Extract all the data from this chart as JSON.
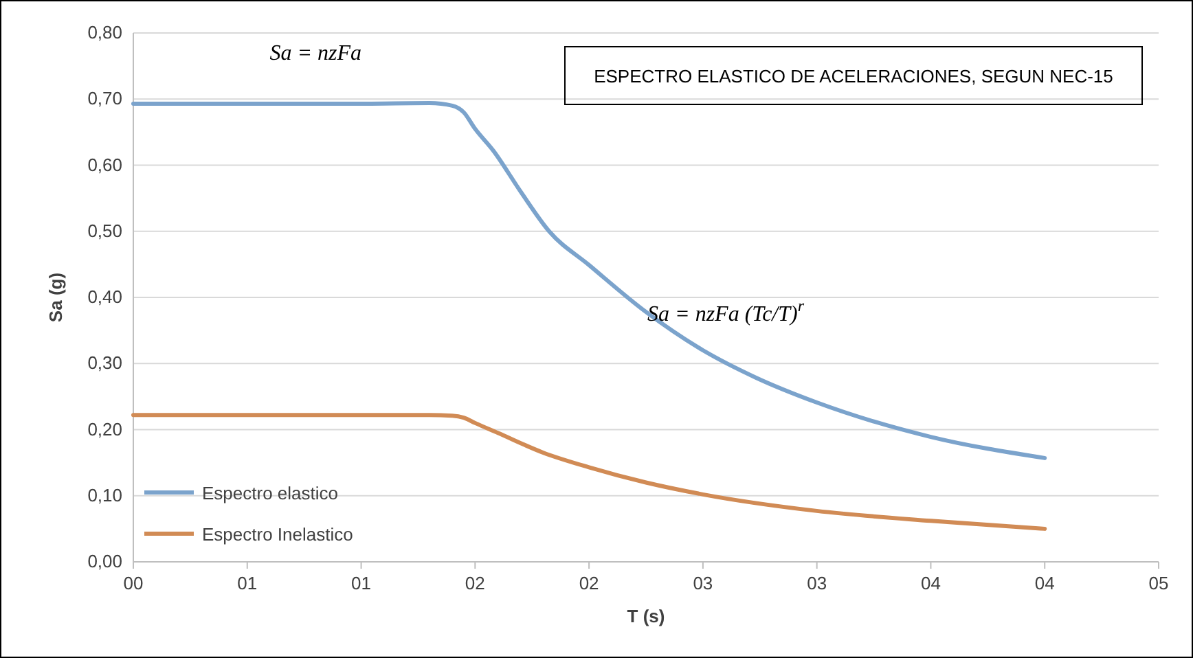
{
  "chart_data": {
    "type": "line",
    "title": "ESPECTRO ELASTICO DE ACELERACIONES, SEGUN NEC-15",
    "xlabel": "T (s)",
    "ylabel": "Sa (g)",
    "annotations": [
      "Sa = nzFa",
      "Sa = nzFa (Tc/T)$^{r}$"
    ],
    "series": [
      {
        "name": "Espectro elastico",
        "color": "#7ba3cc",
        "x": [
          0,
          0.5,
          1,
          1.3,
          1.4,
          1.45,
          1.5,
          1.58,
          1.7,
          1.825,
          2,
          2.25,
          2.5,
          2.73,
          3,
          3.5,
          4
        ],
        "values": [
          0.693,
          0.693,
          0.693,
          0.694,
          0.69,
          0.68,
          0.655,
          0.622,
          0.56,
          0.5,
          0.449,
          0.378,
          0.32,
          0.279,
          0.241,
          0.189,
          0.157
        ]
      },
      {
        "name": "Espectro Inelastico",
        "color": "#d18b55",
        "x": [
          0,
          0.5,
          1,
          1.3,
          1.4,
          1.45,
          1.5,
          1.6,
          1.8,
          2,
          2.25,
          2.5,
          3,
          3.5,
          4
        ],
        "values": [
          0.222,
          0.222,
          0.222,
          0.222,
          0.221,
          0.218,
          0.21,
          0.195,
          0.165,
          0.143,
          0.12,
          0.102,
          0.077,
          0.062,
          0.05
        ]
      }
    ],
    "xlim": [
      0,
      4.5
    ],
    "xticks": [
      {
        "value": 0,
        "label": "00"
      },
      {
        "value": 0.5,
        "label": "01"
      },
      {
        "value": 1,
        "label": "01"
      },
      {
        "value": 1.5,
        "label": "02"
      },
      {
        "value": 2,
        "label": "02"
      },
      {
        "value": 2.5,
        "label": "03"
      },
      {
        "value": 3,
        "label": "03"
      },
      {
        "value": 3.5,
        "label": "04"
      },
      {
        "value": 4,
        "label": "04"
      },
      {
        "value": 4.5,
        "label": "05"
      }
    ],
    "ylim": [
      0,
      0.8
    ],
    "yticks": [
      {
        "value": 0,
        "label": "0,00"
      },
      {
        "value": 0.1,
        "label": "0,10"
      },
      {
        "value": 0.2,
        "label": "0,20"
      },
      {
        "value": 0.3,
        "label": "0,30"
      },
      {
        "value": 0.4,
        "label": "0,40"
      },
      {
        "value": 0.5,
        "label": "0,50"
      },
      {
        "value": 0.6,
        "label": "0,60"
      },
      {
        "value": 0.7,
        "label": "0,70"
      },
      {
        "value": 0.8,
        "label": "0,80"
      }
    ],
    "grid": "y",
    "legend": "bottom left",
    "marker": "none",
    "line_style": "solid"
  }
}
